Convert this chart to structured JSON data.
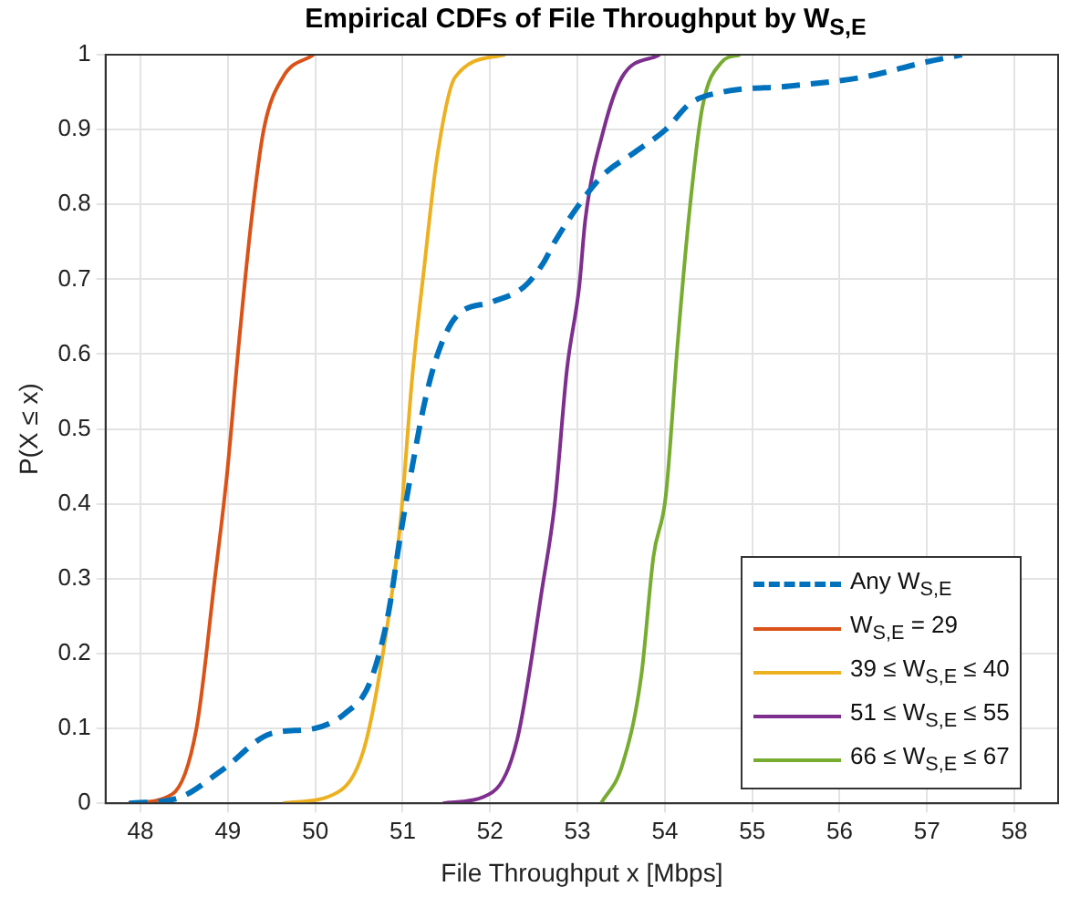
{
  "chart_data": {
    "type": "line",
    "title": "Empirical CDFs of File Throughput by W$_{S,E}$",
    "xlabel": "File Throughput x [Mbps]",
    "ylabel": "P(X ≤ x)",
    "xlim": [
      47.6,
      58.5
    ],
    "xticks": [
      48,
      49,
      50,
      51,
      52,
      53,
      54,
      55,
      56,
      57,
      58
    ],
    "ylim": [
      0,
      1
    ],
    "yticks": [
      0,
      0.1,
      0.2,
      0.3,
      0.4,
      0.5,
      0.6,
      0.7,
      0.8,
      0.9,
      1
    ],
    "grid": true,
    "legend": "bottom right",
    "marker": "none",
    "series": [
      {
        "name": "Any W$_{S,E}$",
        "color": "#0072bd",
        "line_style": "dashed",
        "x": [
          47.87,
          48.43,
          48.93,
          49.49,
          49.99,
          50.34,
          50.62,
          50.83,
          50.97,
          51.11,
          51.25,
          51.4,
          51.61,
          52.03,
          52.39,
          52.6,
          52.74,
          53.02,
          53.3,
          53.66,
          54.01,
          54.29,
          54.65,
          55.42,
          56.27,
          56.98,
          57.4
        ],
        "values": [
          0,
          0.007,
          0.044,
          0.093,
          0.1,
          0.12,
          0.16,
          0.25,
          0.355,
          0.45,
          0.535,
          0.6,
          0.65,
          0.67,
          0.69,
          0.72,
          0.75,
          0.8,
          0.84,
          0.87,
          0.9,
          0.935,
          0.95,
          0.958,
          0.97,
          0.99,
          1
        ]
      },
      {
        "name": "W$_{S,E}$ = 29",
        "color": "#d95319",
        "line_style": "solid",
        "x": [
          47.86,
          48.36,
          48.64,
          48.85,
          48.99,
          49.13,
          49.27,
          49.41,
          49.63,
          49.98
        ],
        "values": [
          0,
          0.012,
          0.1,
          0.3,
          0.44,
          0.62,
          0.78,
          0.9,
          0.97,
          1
        ]
      },
      {
        "name": "39 ≤ W$_{S,E}$ ≤ 40",
        "color": "#edb120",
        "line_style": "solid",
        "x": [
          49.63,
          50.26,
          50.55,
          50.76,
          50.97,
          51.11,
          51.25,
          51.39,
          51.6,
          52.17
        ],
        "values": [
          0,
          0.015,
          0.07,
          0.19,
          0.37,
          0.57,
          0.72,
          0.86,
          0.97,
          1
        ]
      },
      {
        "name": "51 ≤ W$_{S,E}$ ≤ 55",
        "color": "#7e2f8e",
        "line_style": "solid",
        "x": [
          51.46,
          52.03,
          52.31,
          52.6,
          52.74,
          52.88,
          53.02,
          53.09,
          53.3,
          53.51,
          53.94
        ],
        "values": [
          0,
          0.015,
          0.085,
          0.29,
          0.4,
          0.58,
          0.69,
          0.78,
          0.9,
          0.97,
          1
        ]
      },
      {
        "name": "66 ≤ W$_{S,E}$ ≤ 67",
        "color": "#77ac30",
        "line_style": "solid",
        "x": [
          53.27,
          53.51,
          53.73,
          53.87,
          54.01,
          54.15,
          54.29,
          54.43,
          54.65,
          54.86
        ],
        "values": [
          0,
          0.05,
          0.17,
          0.33,
          0.41,
          0.62,
          0.8,
          0.93,
          0.99,
          1
        ]
      }
    ]
  }
}
